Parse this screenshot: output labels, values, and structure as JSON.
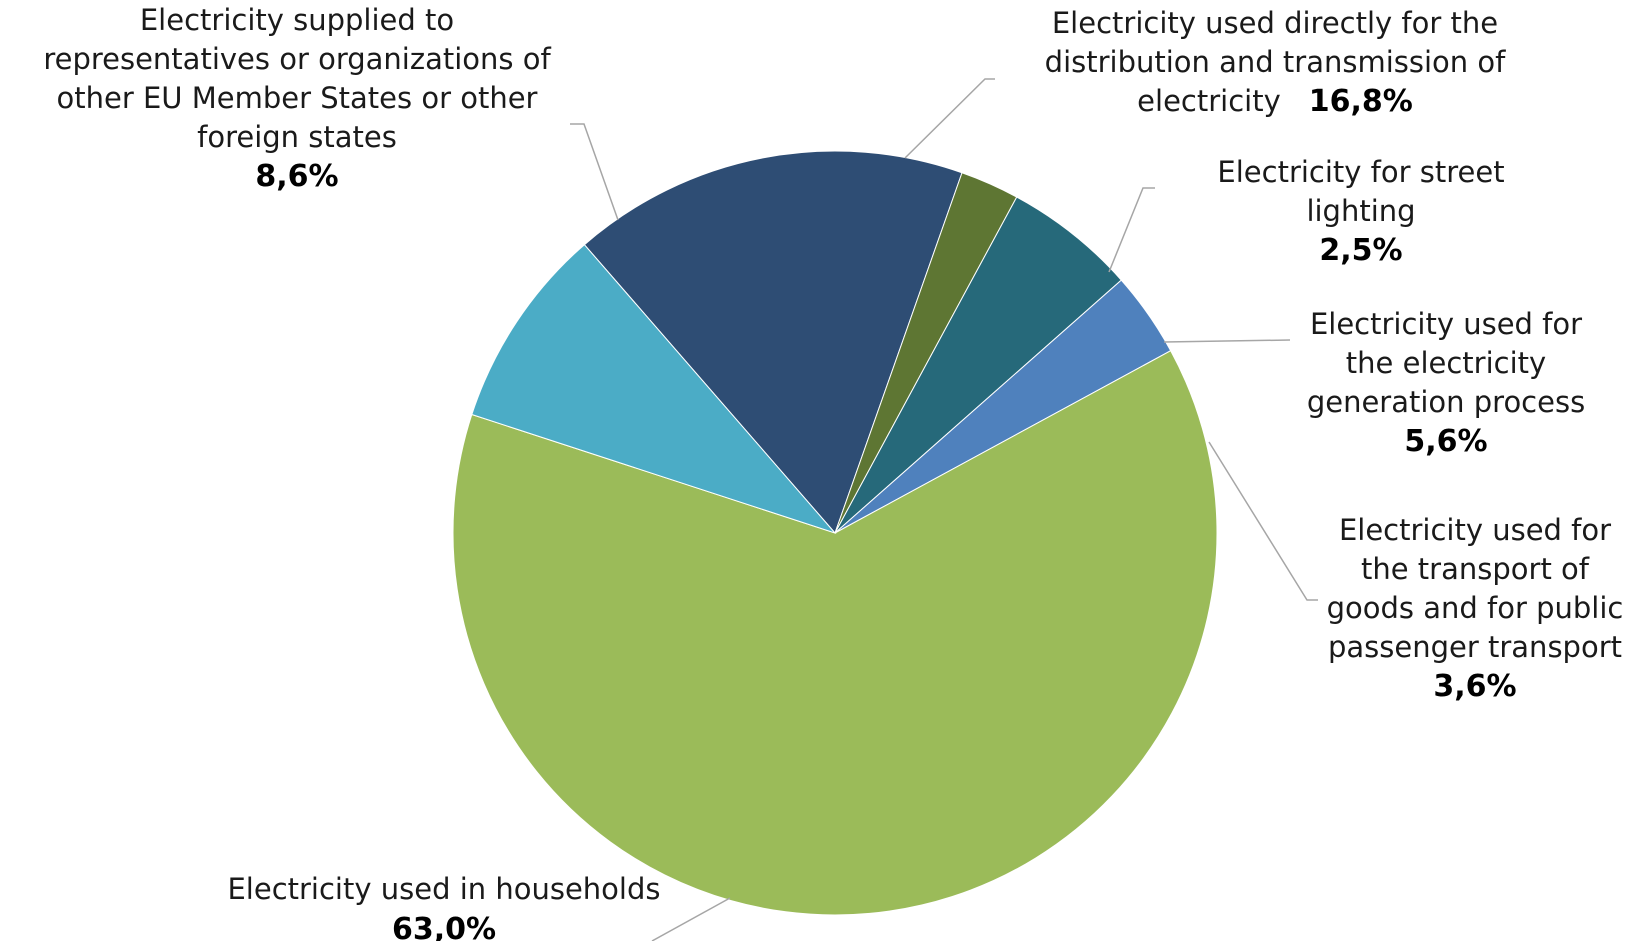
{
  "chart_data": {
    "type": "pie",
    "title": "",
    "start_angle_deg": 131,
    "direction": "clockwise",
    "slices": [
      {
        "key": "transmission",
        "label_lines": [
          "Electricity used directly for the",
          "distribution and transmission of",
          "electricity"
        ],
        "value": 16.8,
        "value_label": "16,8%",
        "value_inline": true,
        "color": "#2E4D74"
      },
      {
        "key": "street-lighting",
        "label_lines": [
          "Electricity for street",
          "lighting"
        ],
        "value": 2.5,
        "value_label": "2,5%",
        "value_inline": false,
        "color": "#5E7633"
      },
      {
        "key": "generation",
        "label_lines": [
          "Electricity used for",
          "the electricity",
          "generation process"
        ],
        "value": 5.6,
        "value_label": "5,6%",
        "value_inline": false,
        "color": "#26697A"
      },
      {
        "key": "transport",
        "label_lines": [
          "Electricity used for",
          "the transport of",
          "goods and for public",
          "passenger transport"
        ],
        "value": 3.6,
        "value_label": "3,6%",
        "value_inline": false,
        "color": "#4F81BD"
      },
      {
        "key": "households",
        "label_lines": [
          "Electricity used in households"
        ],
        "value": 63.0,
        "value_label": "63,0%",
        "value_inline": false,
        "color": "#9BBB59"
      },
      {
        "key": "foreign",
        "label_lines": [
          "Electricity supplied to",
          "representatives or organizations of",
          "other EU Member States or other",
          "foreign states"
        ],
        "value": 8.6,
        "value_label": "8,6%",
        "value_inline": false,
        "color": "#4BACC6"
      }
    ]
  }
}
